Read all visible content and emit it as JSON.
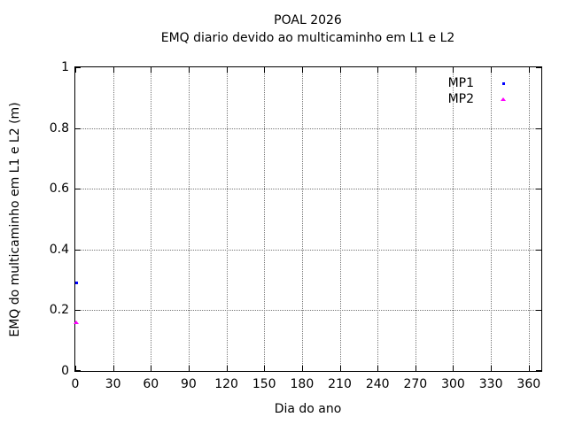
{
  "chart_data": {
    "type": "scatter",
    "title": "POAL 2026",
    "subtitle": "EMQ diario devido ao multicaminho em L1 e L2",
    "xlabel": "Dia do ano",
    "ylabel": "EMQ do multicaminho em L1 e L2 (m)",
    "xlim": [
      0,
      370
    ],
    "ylim": [
      0,
      1
    ],
    "xticks": [
      0,
      30,
      60,
      90,
      120,
      150,
      180,
      210,
      240,
      270,
      300,
      330,
      360
    ],
    "xtick_labels": [
      "0",
      "30",
      "60",
      "90",
      "120",
      "150",
      "180",
      "210",
      "240",
      "270",
      "300",
      "330",
      "360"
    ],
    "yticks": [
      0,
      0.2,
      0.4,
      0.6,
      0.8,
      1
    ],
    "ytick_labels": [
      "0",
      "0.2",
      "0.4",
      "0.6",
      "0.8",
      "1"
    ],
    "grid": true,
    "legend_position": "top-right",
    "series": [
      {
        "name": "MP1",
        "marker": "square",
        "color": "#0000ff",
        "points": [
          {
            "x": 1,
            "y": 0.29
          }
        ]
      },
      {
        "name": "MP2",
        "marker": "triangle",
        "color": "#ff00ff",
        "points": [
          {
            "x": 1,
            "y": 0.16
          }
        ]
      }
    ]
  }
}
